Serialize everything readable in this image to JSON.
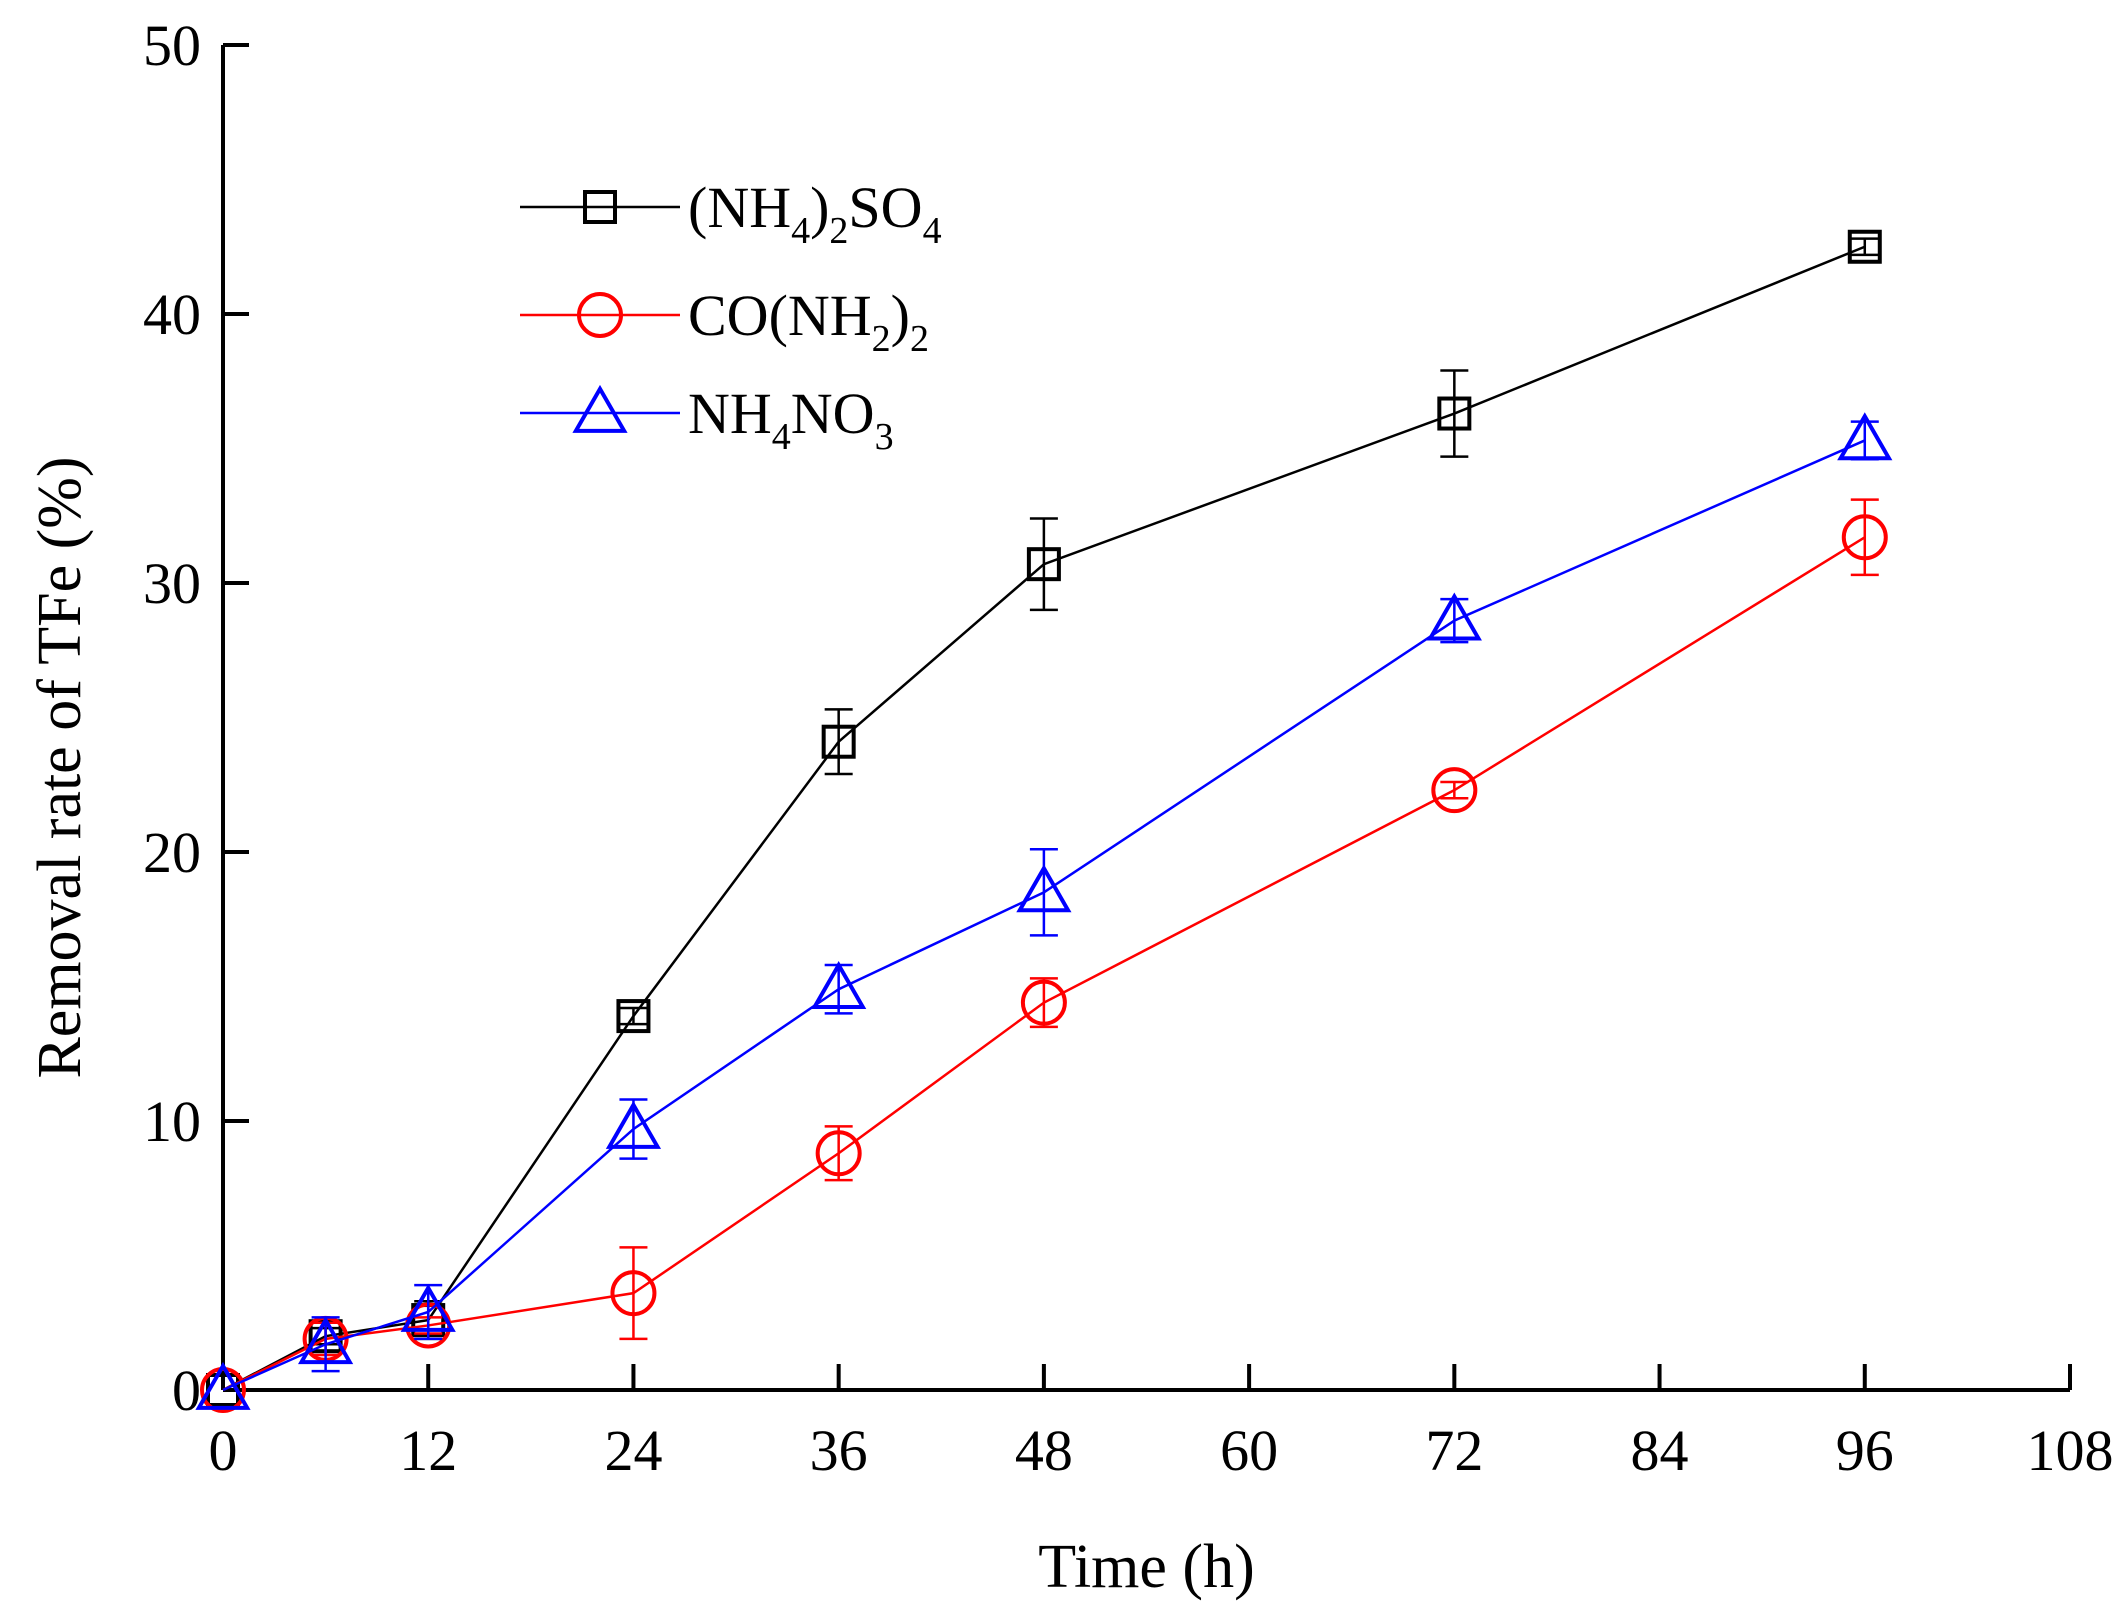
{
  "chart_data": {
    "type": "line",
    "title": "",
    "xlabel": "Time (h)",
    "ylabel": "Removal rate of TFe (%)",
    "xlim": [
      0,
      108
    ],
    "ylim": [
      0,
      50
    ],
    "xticks": [
      0,
      12,
      24,
      36,
      48,
      60,
      72,
      84,
      96,
      108
    ],
    "yticks": [
      0,
      10,
      20,
      30,
      40,
      50
    ],
    "grid": false,
    "legend_position": "top-left",
    "x": [
      0,
      6,
      12,
      24,
      36,
      48,
      72,
      96
    ],
    "series": [
      {
        "name": "(NH4)2SO4",
        "legend": {
          "parts": [
            "(NH",
            "4",
            ")",
            "2",
            "SO",
            "4"
          ]
        },
        "color": "#000000",
        "marker": "square",
        "values": [
          0,
          2.0,
          2.6,
          13.9,
          24.1,
          30.7,
          36.3,
          42.5
        ],
        "errors": [
          0,
          0.3,
          0.7,
          0.3,
          1.2,
          1.7,
          1.6,
          0.3
        ]
      },
      {
        "name": "CO(NH2)2",
        "legend": {
          "parts": [
            "CO(NH",
            "2",
            ")",
            "2"
          ]
        },
        "color": "#ff0000",
        "marker": "circle",
        "values": [
          0,
          1.9,
          2.4,
          3.6,
          8.8,
          14.4,
          22.3,
          31.7
        ],
        "errors": [
          0,
          0.6,
          0.3,
          1.7,
          1.0,
          0.9,
          0.3,
          1.4
        ]
      },
      {
        "name": "NH4NO3",
        "legend": {
          "parts": [
            "NH",
            "4",
            "NO",
            "3"
          ]
        },
        "color": "#0000ff",
        "marker": "triangle",
        "values": [
          0,
          1.7,
          2.9,
          9.7,
          14.9,
          18.5,
          28.6,
          35.3
        ],
        "errors": [
          0,
          1.0,
          1.0,
          1.1,
          0.9,
          1.6,
          0.8,
          0.7
        ]
      }
    ]
  }
}
